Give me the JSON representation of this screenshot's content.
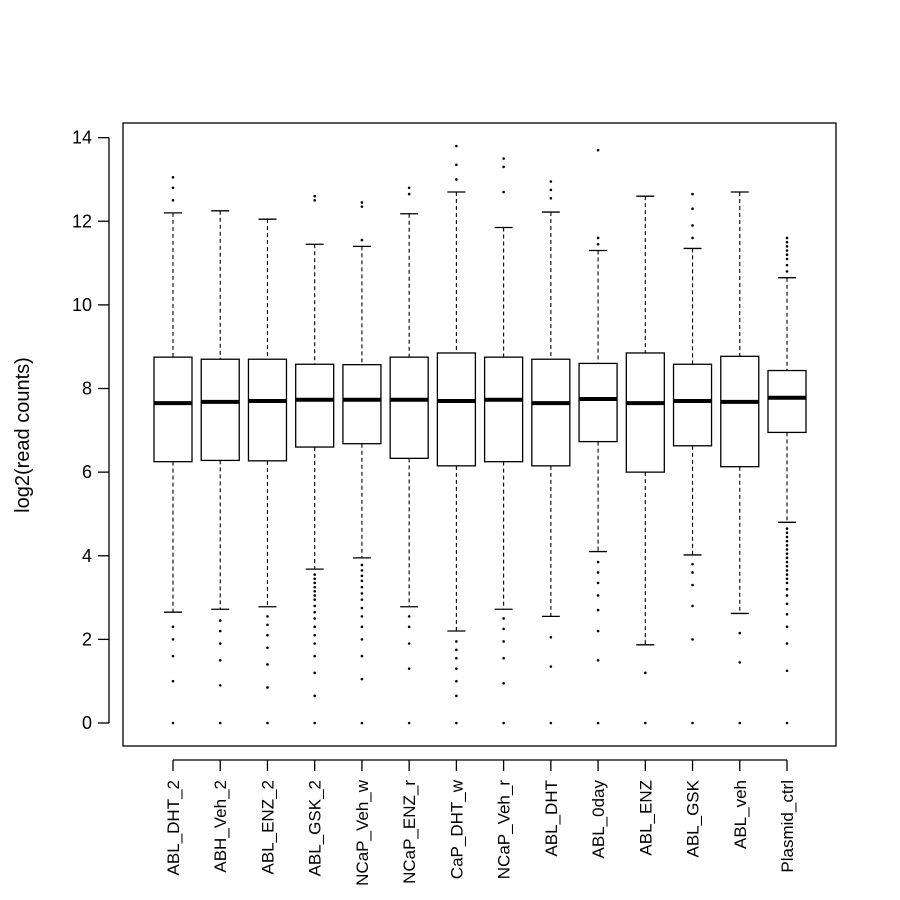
{
  "chart_data": {
    "type": "boxplot",
    "ylabel": "log2(read counts)",
    "ylim": [
      -0.55,
      14.35
    ],
    "yticks": [
      0,
      2,
      4,
      6,
      8,
      10,
      12,
      14
    ],
    "grid": false,
    "series": [
      {
        "category": "ABL_DHT_2",
        "q1": 6.25,
        "median": 7.65,
        "q3": 8.75,
        "whisker_low": 2.65,
        "whisker_high": 12.2,
        "outliers_high": [
          12.5,
          12.8,
          13.05
        ],
        "outliers_low": [
          0,
          1.0,
          1.6,
          2.0,
          2.3
        ]
      },
      {
        "category": "ABH_Veh_2",
        "q1": 6.28,
        "median": 7.68,
        "q3": 8.7,
        "whisker_low": 2.72,
        "whisker_high": 12.25,
        "outliers_high": [],
        "outliers_low": [
          0,
          0.9,
          1.5,
          1.9,
          2.2,
          2.45
        ]
      },
      {
        "category": "ABL_ENZ_2",
        "q1": 6.27,
        "median": 7.7,
        "q3": 8.7,
        "whisker_low": 2.78,
        "whisker_high": 12.05,
        "outliers_high": [],
        "outliers_low": [
          0,
          0.85,
          1.4,
          1.8,
          2.1,
          2.35,
          2.55
        ]
      },
      {
        "category": "ABL_GSK_2",
        "q1": 6.6,
        "median": 7.73,
        "q3": 8.58,
        "whisker_low": 3.68,
        "whisker_high": 11.45,
        "outliers_high": [
          12.5,
          12.6
        ],
        "outliers_low": [
          0,
          0.65,
          1.2,
          1.6,
          1.9,
          2.1,
          2.3,
          2.5,
          2.65,
          2.8,
          2.95,
          3.05,
          3.15,
          3.25,
          3.35,
          3.45,
          3.55
        ]
      },
      {
        "category": "NCaP_Veh_w",
        "q1": 6.68,
        "median": 7.73,
        "q3": 8.57,
        "whisker_low": 3.95,
        "whisker_high": 11.4,
        "outliers_high": [
          11.55,
          12.35,
          12.45
        ],
        "outliers_low": [
          0,
          1.05,
          1.6,
          2.0,
          2.3,
          2.55,
          2.75,
          2.95,
          3.1,
          3.25,
          3.4,
          3.52,
          3.65,
          3.78
        ]
      },
      {
        "category": "NCaP_ENZ_r",
        "q1": 6.33,
        "median": 7.73,
        "q3": 8.75,
        "whisker_low": 2.78,
        "whisker_high": 12.18,
        "outliers_high": [
          12.65,
          12.8
        ],
        "outliers_low": [
          0,
          1.3,
          1.9,
          2.3,
          2.55
        ]
      },
      {
        "category": "CaP_DHT_w",
        "q1": 6.15,
        "median": 7.7,
        "q3": 8.85,
        "whisker_low": 2.2,
        "whisker_high": 12.7,
        "outliers_high": [
          13.0,
          13.35,
          13.8
        ],
        "outliers_low": [
          0,
          0.65,
          1.0,
          1.3,
          1.55,
          1.75,
          1.95
        ]
      },
      {
        "category": "NCaP_Veh_r",
        "q1": 6.25,
        "median": 7.73,
        "q3": 8.75,
        "whisker_low": 2.72,
        "whisker_high": 11.85,
        "outliers_high": [
          12.7,
          13.3,
          13.5
        ],
        "outliers_low": [
          0,
          0.95,
          1.55,
          1.95,
          2.25,
          2.5
        ]
      },
      {
        "category": "ABL_DHT",
        "q1": 6.15,
        "median": 7.65,
        "q3": 8.7,
        "whisker_low": 2.55,
        "whisker_high": 12.22,
        "outliers_high": [
          12.55,
          12.75,
          12.95
        ],
        "outliers_low": [
          0,
          1.35,
          2.05
        ]
      },
      {
        "category": "ABL_0day",
        "q1": 6.73,
        "median": 7.75,
        "q3": 8.6,
        "whisker_low": 4.1,
        "whisker_high": 11.3,
        "outliers_high": [
          11.45,
          11.6,
          13.7
        ],
        "outliers_low": [
          0,
          1.5,
          2.2,
          2.7,
          3.05,
          3.35,
          3.6,
          3.85
        ]
      },
      {
        "category": "ABL_ENZ",
        "q1": 6.0,
        "median": 7.65,
        "q3": 8.85,
        "whisker_low": 1.87,
        "whisker_high": 12.6,
        "outliers_high": [],
        "outliers_low": [
          0,
          1.2
        ]
      },
      {
        "category": "ABL_GSK",
        "q1": 6.63,
        "median": 7.7,
        "q3": 8.58,
        "whisker_low": 4.02,
        "whisker_high": 11.35,
        "outliers_high": [
          11.6,
          11.9,
          12.3,
          12.65
        ],
        "outliers_low": [
          0,
          2.0,
          2.8,
          3.3,
          3.6,
          3.8
        ]
      },
      {
        "category": "ABL_veh",
        "q1": 6.13,
        "median": 7.68,
        "q3": 8.77,
        "whisker_low": 2.62,
        "whisker_high": 12.7,
        "outliers_high": [],
        "outliers_low": [
          0,
          1.45,
          2.15
        ]
      },
      {
        "category": "Plasmid_ctrl",
        "q1": 6.95,
        "median": 7.78,
        "q3": 8.43,
        "whisker_low": 4.8,
        "whisker_high": 10.65,
        "outliers_high": [
          10.8,
          10.95,
          11.1,
          11.2,
          11.3,
          11.4,
          11.5,
          11.6
        ],
        "outliers_low": [
          0,
          1.25,
          1.9,
          2.3,
          2.6,
          2.85,
          3.05,
          3.2,
          3.35,
          3.45,
          3.55,
          3.65,
          3.75,
          3.85,
          3.95,
          4.05,
          4.15,
          4.25,
          4.35,
          4.45,
          4.55,
          4.65
        ]
      }
    ]
  }
}
